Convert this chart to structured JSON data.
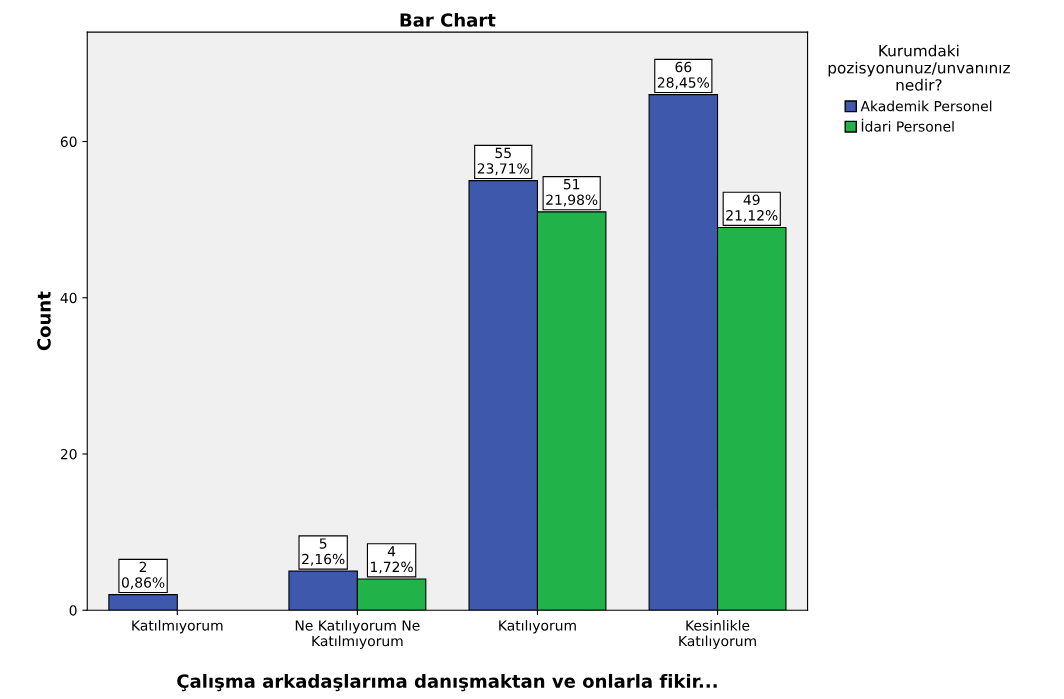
{
  "chart_data": {
    "type": "bar",
    "title": "Bar Chart",
    "xlabel": "Çalışma arkadaşlarıma danışmaktan ve onlarla fikir...",
    "ylabel": "Count",
    "legend_title": "Kurumdaki\npozisyonunuz/unvanınız\nnedir?",
    "categories": [
      "Katılmıyorum",
      "Ne Katılıyorum Ne\nKatılmıyorum",
      "Katılıyorum",
      "Kesinlikle\nKatılıyorum"
    ],
    "series": [
      {
        "name": "Akademik Personel",
        "color": "#3e58ac",
        "values": [
          2,
          5,
          55,
          66
        ],
        "value_labels": [
          "2\n0,86%",
          "5\n2,16%",
          "55\n23,71%",
          "66\n28,45%"
        ]
      },
      {
        "name": "İdari Personel",
        "color": "#21b24a",
        "values": [
          null,
          4,
          51,
          49
        ],
        "value_labels": [
          null,
          "4\n1,72%",
          "51\n21,98%",
          "49\n21,12%"
        ]
      }
    ],
    "ylim": [
      0,
      74
    ],
    "yticks": [
      0,
      20,
      40,
      60
    ],
    "grid": false,
    "legend": "right"
  }
}
